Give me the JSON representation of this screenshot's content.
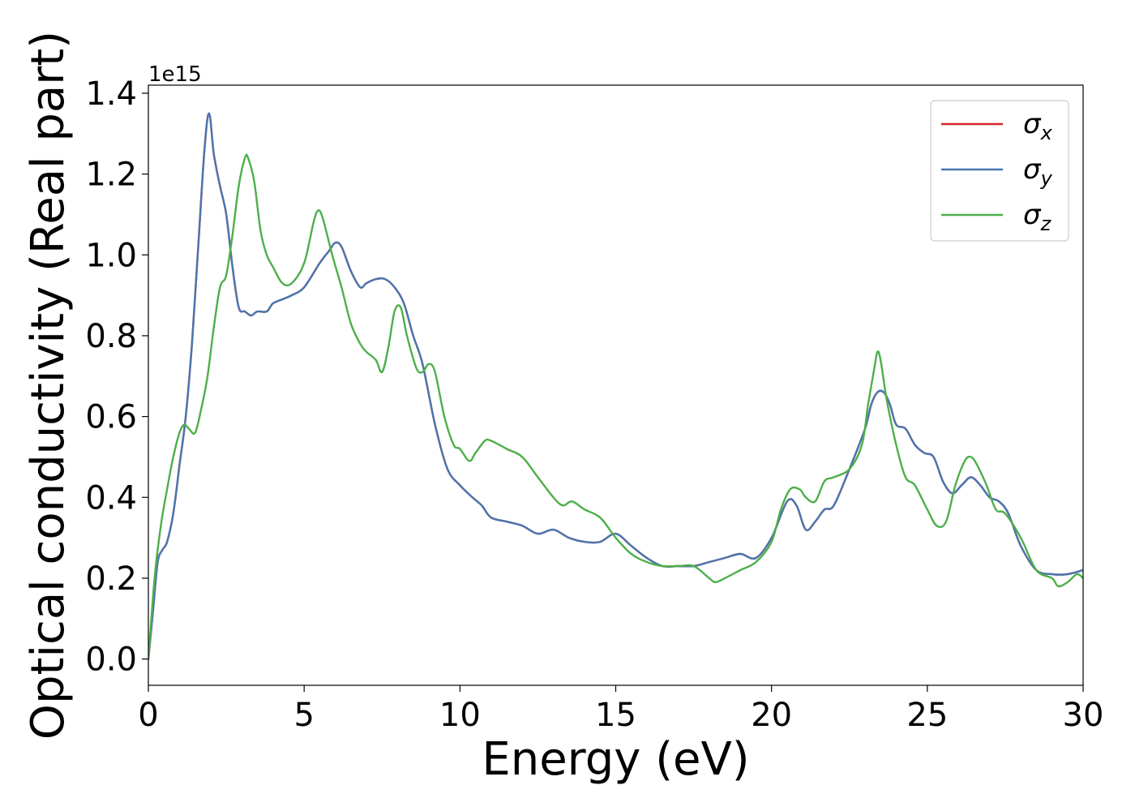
{
  "chart_data": {
    "type": "line",
    "xlabel": "Energy (eV)",
    "ylabel": "Optical conductivity (Real part)",
    "y_multiplier_label": "1e15",
    "xlim": [
      0,
      30
    ],
    "ylim": [
      -0.065,
      1.42
    ],
    "x_ticks": [
      0,
      5,
      10,
      15,
      20,
      25,
      30
    ],
    "x_tick_labels": [
      "0",
      "5",
      "10",
      "15",
      "20",
      "25",
      "30"
    ],
    "y_ticks": [
      0.0,
      0.2,
      0.4,
      0.6,
      0.8,
      1.0,
      1.2,
      1.4
    ],
    "y_tick_labels": [
      "0.0",
      "0.2",
      "0.4",
      "0.6",
      "0.8",
      "1.0",
      "1.2",
      "1.4"
    ],
    "grid": false,
    "legend_position": "top-right",
    "series": [
      {
        "name": "σ",
        "subscript": "x",
        "color": "#d62728",
        "x": [
          0,
          0.15,
          0.3,
          0.45,
          0.6,
          0.8,
          1.0,
          1.2,
          1.4,
          1.6,
          1.8,
          1.95,
          2.1,
          2.3,
          2.5,
          2.7,
          2.9,
          3.1,
          3.3,
          3.5,
          3.8,
          4.0,
          4.3,
          4.6,
          5.0,
          5.5,
          5.8,
          6.0,
          6.2,
          6.5,
          6.8,
          7.0,
          7.3,
          7.6,
          7.9,
          8.2,
          8.5,
          8.8,
          9.2,
          9.6,
          10.0,
          10.4,
          10.7,
          11.0,
          11.5,
          12.0,
          12.5,
          13.0,
          13.5,
          14.0,
          14.5,
          15.0,
          15.5,
          16.0,
          16.5,
          17.0,
          17.5,
          18.0,
          18.5,
          19.0,
          19.5,
          20.0,
          20.5,
          20.8,
          21.1,
          21.4,
          21.7,
          22.0,
          22.5,
          23.0,
          23.2,
          23.4,
          23.6,
          23.8,
          24.0,
          24.3,
          24.6,
          24.9,
          25.2,
          25.5,
          25.8,
          26.1,
          26.4,
          26.7,
          27.0,
          27.3,
          27.6,
          28.0,
          28.5,
          29.0,
          29.5,
          30.0
        ],
        "y": [
          0.0,
          0.12,
          0.24,
          0.27,
          0.29,
          0.36,
          0.48,
          0.6,
          0.78,
          1.02,
          1.26,
          1.35,
          1.25,
          1.17,
          1.1,
          0.97,
          0.87,
          0.86,
          0.85,
          0.86,
          0.86,
          0.88,
          0.89,
          0.9,
          0.92,
          0.98,
          1.01,
          1.03,
          1.02,
          0.96,
          0.92,
          0.93,
          0.94,
          0.94,
          0.92,
          0.88,
          0.8,
          0.73,
          0.58,
          0.47,
          0.43,
          0.4,
          0.38,
          0.35,
          0.34,
          0.33,
          0.31,
          0.32,
          0.3,
          0.29,
          0.29,
          0.31,
          0.28,
          0.25,
          0.23,
          0.23,
          0.23,
          0.24,
          0.25,
          0.26,
          0.25,
          0.3,
          0.39,
          0.38,
          0.32,
          0.34,
          0.37,
          0.38,
          0.47,
          0.57,
          0.63,
          0.66,
          0.66,
          0.63,
          0.58,
          0.57,
          0.53,
          0.51,
          0.5,
          0.44,
          0.41,
          0.43,
          0.45,
          0.43,
          0.4,
          0.39,
          0.36,
          0.28,
          0.22,
          0.21,
          0.21,
          0.22
        ]
      },
      {
        "name": "σ",
        "subscript": "y",
        "color": "#4a76b0",
        "x": [
          0,
          0.15,
          0.3,
          0.45,
          0.6,
          0.8,
          1.0,
          1.2,
          1.4,
          1.6,
          1.8,
          1.95,
          2.1,
          2.3,
          2.5,
          2.7,
          2.9,
          3.1,
          3.3,
          3.5,
          3.8,
          4.0,
          4.3,
          4.6,
          5.0,
          5.5,
          5.8,
          6.0,
          6.2,
          6.5,
          6.8,
          7.0,
          7.3,
          7.6,
          7.9,
          8.2,
          8.5,
          8.8,
          9.2,
          9.6,
          10.0,
          10.4,
          10.7,
          11.0,
          11.5,
          12.0,
          12.5,
          13.0,
          13.5,
          14.0,
          14.5,
          15.0,
          15.5,
          16.0,
          16.5,
          17.0,
          17.5,
          18.0,
          18.5,
          19.0,
          19.5,
          20.0,
          20.5,
          20.8,
          21.1,
          21.4,
          21.7,
          22.0,
          22.5,
          23.0,
          23.2,
          23.4,
          23.6,
          23.8,
          24.0,
          24.3,
          24.6,
          24.9,
          25.2,
          25.5,
          25.8,
          26.1,
          26.4,
          26.7,
          27.0,
          27.3,
          27.6,
          28.0,
          28.5,
          29.0,
          29.5,
          30.0
        ],
        "y": [
          0.0,
          0.12,
          0.24,
          0.27,
          0.29,
          0.36,
          0.48,
          0.6,
          0.78,
          1.02,
          1.26,
          1.35,
          1.25,
          1.17,
          1.1,
          0.97,
          0.87,
          0.86,
          0.85,
          0.86,
          0.86,
          0.88,
          0.89,
          0.9,
          0.92,
          0.98,
          1.01,
          1.03,
          1.02,
          0.96,
          0.92,
          0.93,
          0.94,
          0.94,
          0.92,
          0.88,
          0.8,
          0.73,
          0.58,
          0.47,
          0.43,
          0.4,
          0.38,
          0.35,
          0.34,
          0.33,
          0.31,
          0.32,
          0.3,
          0.29,
          0.29,
          0.31,
          0.28,
          0.25,
          0.23,
          0.23,
          0.23,
          0.24,
          0.25,
          0.26,
          0.25,
          0.3,
          0.39,
          0.38,
          0.32,
          0.34,
          0.37,
          0.38,
          0.47,
          0.57,
          0.63,
          0.66,
          0.66,
          0.63,
          0.58,
          0.57,
          0.53,
          0.51,
          0.5,
          0.44,
          0.41,
          0.43,
          0.45,
          0.43,
          0.4,
          0.39,
          0.36,
          0.28,
          0.22,
          0.21,
          0.21,
          0.22
        ]
      },
      {
        "name": "σ",
        "subscript": "z",
        "color": "#4daf4a",
        "x": [
          0,
          0.2,
          0.4,
          0.6,
          0.8,
          1.0,
          1.15,
          1.3,
          1.5,
          1.7,
          1.9,
          2.1,
          2.3,
          2.5,
          2.7,
          2.9,
          3.1,
          3.2,
          3.4,
          3.6,
          3.8,
          4.0,
          4.3,
          4.6,
          5.0,
          5.3,
          5.45,
          5.6,
          5.9,
          6.2,
          6.5,
          6.8,
          7.0,
          7.3,
          7.5,
          7.7,
          7.9,
          8.1,
          8.3,
          8.6,
          8.8,
          9.0,
          9.2,
          9.5,
          9.8,
          10.0,
          10.3,
          10.5,
          10.8,
          11.0,
          11.5,
          12.0,
          12.5,
          13.0,
          13.3,
          13.6,
          14.0,
          14.5,
          15.0,
          15.5,
          16.0,
          16.5,
          17.0,
          17.5,
          18.0,
          18.2,
          18.5,
          19.0,
          19.5,
          20.0,
          20.3,
          20.6,
          20.9,
          21.1,
          21.4,
          21.7,
          22.0,
          22.5,
          22.9,
          23.1,
          23.3,
          23.4,
          23.5,
          23.7,
          24.0,
          24.3,
          24.6,
          25.0,
          25.3,
          25.6,
          25.9,
          26.2,
          26.4,
          26.6,
          26.9,
          27.2,
          27.5,
          28.0,
          28.5,
          29.0,
          29.2,
          29.5,
          29.8,
          30.0
        ],
        "y": [
          0.0,
          0.2,
          0.33,
          0.42,
          0.5,
          0.56,
          0.58,
          0.57,
          0.56,
          0.62,
          0.7,
          0.82,
          0.92,
          0.95,
          1.05,
          1.17,
          1.24,
          1.24,
          1.18,
          1.06,
          1.0,
          0.97,
          0.93,
          0.93,
          0.98,
          1.08,
          1.11,
          1.09,
          1.0,
          0.92,
          0.83,
          0.78,
          0.76,
          0.74,
          0.71,
          0.77,
          0.86,
          0.87,
          0.8,
          0.72,
          0.71,
          0.73,
          0.71,
          0.6,
          0.53,
          0.52,
          0.49,
          0.51,
          0.54,
          0.54,
          0.52,
          0.5,
          0.45,
          0.4,
          0.38,
          0.39,
          0.37,
          0.35,
          0.3,
          0.26,
          0.24,
          0.23,
          0.23,
          0.23,
          0.2,
          0.19,
          0.2,
          0.22,
          0.24,
          0.29,
          0.37,
          0.42,
          0.42,
          0.4,
          0.39,
          0.44,
          0.45,
          0.47,
          0.53,
          0.63,
          0.72,
          0.76,
          0.74,
          0.64,
          0.53,
          0.45,
          0.43,
          0.37,
          0.33,
          0.34,
          0.43,
          0.49,
          0.5,
          0.48,
          0.43,
          0.37,
          0.36,
          0.3,
          0.22,
          0.2,
          0.18,
          0.19,
          0.21,
          0.2
        ]
      }
    ]
  }
}
